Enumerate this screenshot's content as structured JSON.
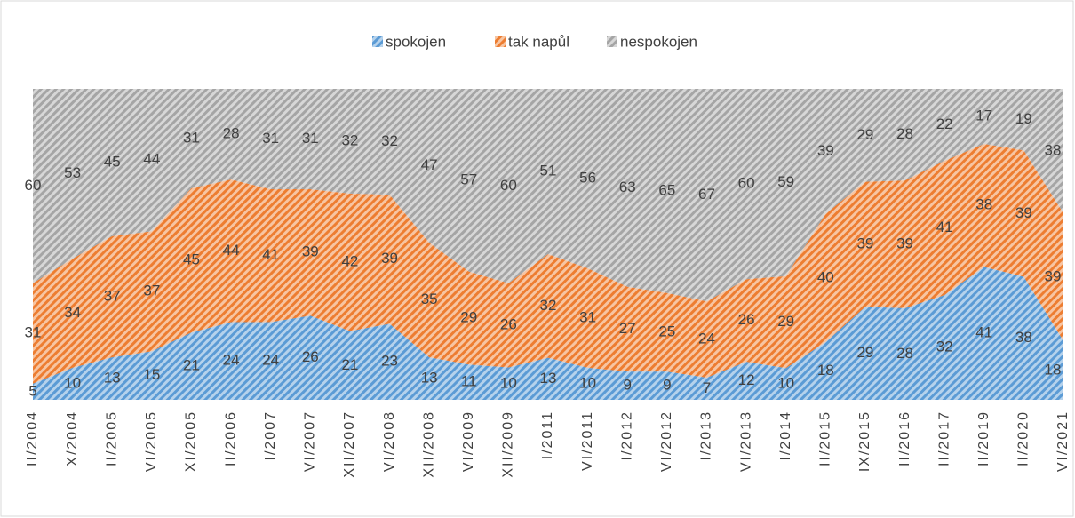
{
  "chart_data": {
    "type": "area",
    "stacking": "percent",
    "categories": [
      "II/2004",
      "X/2004",
      "II/2005",
      "VI/2005",
      "XI/2005",
      "II/2006",
      "I/2007",
      "VI/2007",
      "XII/2007",
      "VI/2008",
      "XII/2008",
      "VI/2009",
      "XII/2009",
      "I/2011",
      "VI/2011",
      "I/2012",
      "VI/2012",
      "I/2013",
      "VI/2013",
      "I/2014",
      "II/2015",
      "IX/2015",
      "II/2016",
      "II/2017",
      "II/2019",
      "II/2020",
      "VI/2021"
    ],
    "series": [
      {
        "name": "spokojen",
        "color": "#5b9bd5",
        "values": [
          5,
          10,
          13,
          15,
          21,
          24,
          24,
          26,
          21,
          23,
          13,
          11,
          10,
          13,
          10,
          9,
          9,
          7,
          12,
          10,
          18,
          29,
          28,
          32,
          41,
          38,
          18
        ]
      },
      {
        "name": "tak napůl",
        "color": "#ed7d31",
        "values": [
          31,
          34,
          37,
          37,
          45,
          44,
          41,
          39,
          42,
          39,
          35,
          29,
          26,
          32,
          31,
          27,
          25,
          24,
          26,
          29,
          40,
          39,
          39,
          41,
          38,
          39,
          39
        ]
      },
      {
        "name": "nespokojen",
        "color": "#a5a5a5",
        "values": [
          60,
          53,
          45,
          44,
          31,
          28,
          31,
          31,
          32,
          32,
          47,
          57,
          60,
          51,
          56,
          63,
          65,
          67,
          60,
          59,
          39,
          29,
          28,
          22,
          17,
          19,
          38
        ]
      }
    ],
    "legend": "top"
  }
}
